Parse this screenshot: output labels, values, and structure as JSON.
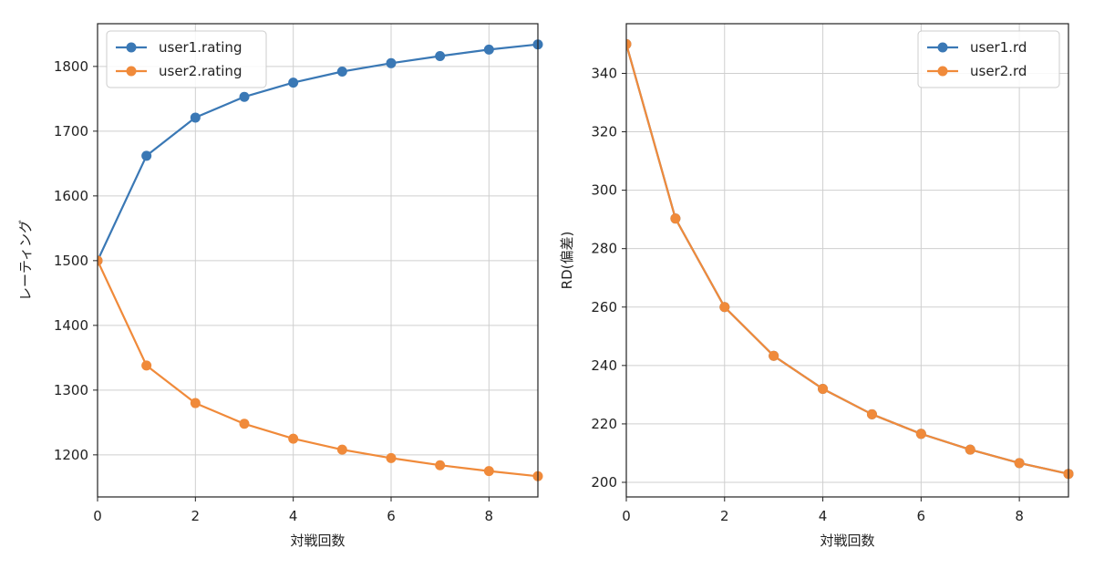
{
  "chart_data": [
    {
      "type": "line",
      "xlabel": "対戦回数",
      "ylabel": "レーティング",
      "xlim": [
        0,
        9
      ],
      "ylim": [
        1135,
        1866
      ],
      "xticks": [
        0,
        2,
        4,
        6,
        8
      ],
      "yticks": [
        1200,
        1300,
        1400,
        1500,
        1600,
        1700,
        1800
      ],
      "grid": true,
      "legend_position": "top-left",
      "x": [
        0,
        1,
        2,
        3,
        4,
        5,
        6,
        7,
        8,
        9
      ],
      "series": [
        {
          "name": "user1.rating",
          "color": "#3a78b5",
          "values": [
            1500,
            1662,
            1721,
            1753,
            1775,
            1792,
            1805,
            1816,
            1826,
            1834
          ]
        },
        {
          "name": "user2.rating",
          "color": "#f08a3a",
          "values": [
            1500,
            1338,
            1280,
            1248,
            1225,
            1208,
            1195,
            1184,
            1175,
            1167
          ]
        }
      ]
    },
    {
      "type": "line",
      "xlabel": "対戦回数",
      "ylabel": "RD(偏差)",
      "xlim": [
        0,
        9
      ],
      "ylim": [
        195,
        357
      ],
      "xticks": [
        0,
        2,
        4,
        6,
        8
      ],
      "yticks": [
        200,
        220,
        240,
        260,
        280,
        300,
        320,
        340
      ],
      "grid": true,
      "legend_position": "top-right",
      "x": [
        0,
        1,
        2,
        3,
        4,
        5,
        6,
        7,
        8,
        9
      ],
      "series": [
        {
          "name": "user1.rd",
          "color": "#3a78b5",
          "values": [
            350,
            290.3,
            260,
            243.3,
            232,
            223.3,
            216.6,
            211.2,
            206.6,
            202.9
          ]
        },
        {
          "name": "user2.rd",
          "color": "#f08a3a",
          "values": [
            350,
            290.3,
            260,
            243.3,
            232,
            223.3,
            216.6,
            211.2,
            206.6,
            202.9
          ]
        }
      ]
    }
  ]
}
